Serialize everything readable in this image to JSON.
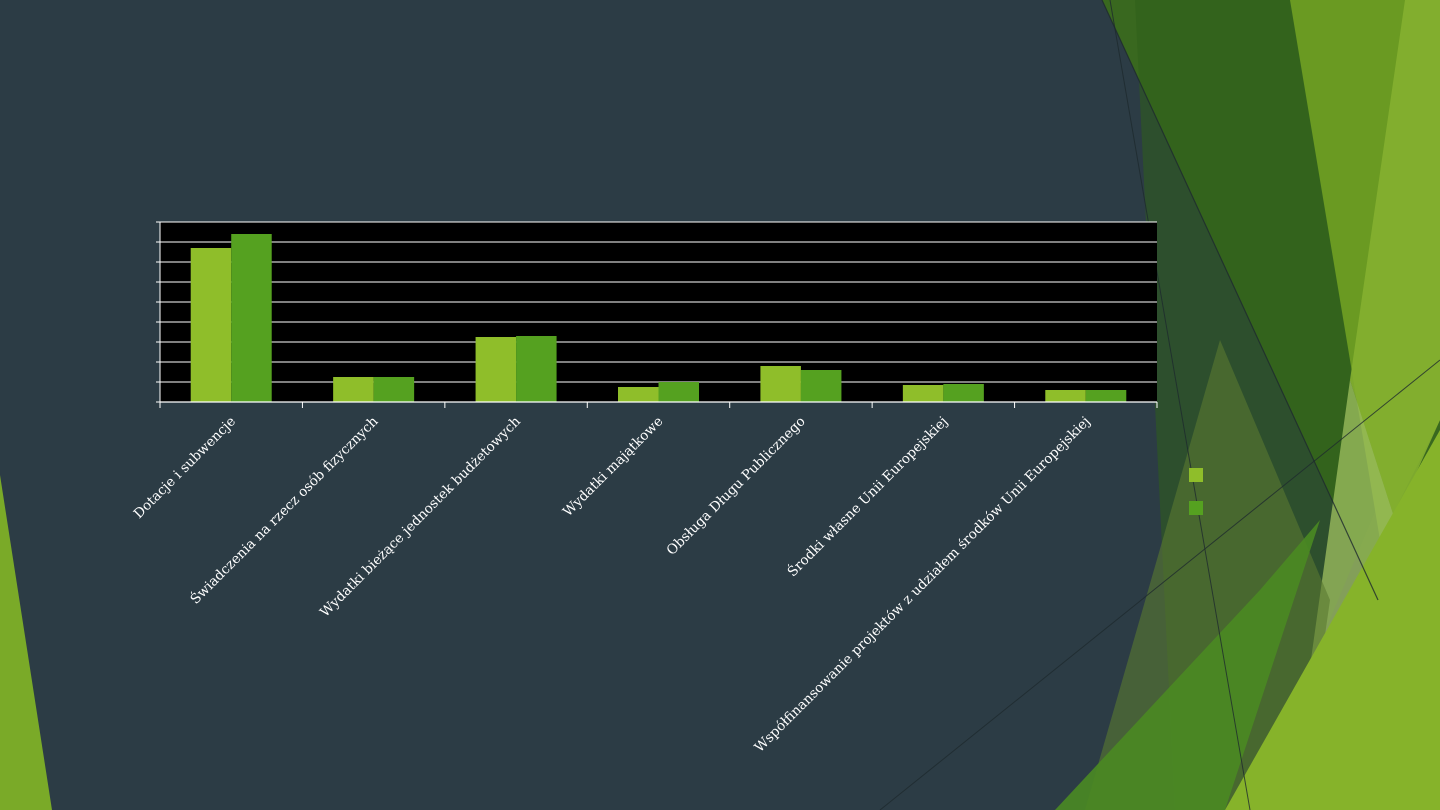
{
  "chart_data": {
    "type": "bar",
    "title": "",
    "xlabel": "",
    "ylabel": "",
    "categories": [
      "Dotacje i subwencje",
      "Świadczenia na rzecz osób fizycznych",
      "Wydatki bieżące jednostek budżetowych",
      "Wydatki majątkowe",
      "Obsługa Długu Publicznego",
      "Środki własne Unii Europejskiej",
      "Współfinansowanie projektów z udziałem środków Unii Europejskiej"
    ],
    "series": [
      {
        "values": [
          7.7,
          1.25,
          3.25,
          0.75,
          1.8,
          0.85,
          0.6
        ]
      },
      {
        "values": [
          8.4,
          1.25,
          3.3,
          1.0,
          1.6,
          0.9,
          0.6
        ]
      }
    ],
    "ylim": [
      0,
      9
    ],
    "grid": true,
    "legend_position": "right"
  },
  "colors": {
    "series_1": "#8fbe2a",
    "series_2": "#55a120",
    "plot_background": "#000000",
    "gridlines": "#ffffff",
    "slide_background": "#2c3c45"
  }
}
